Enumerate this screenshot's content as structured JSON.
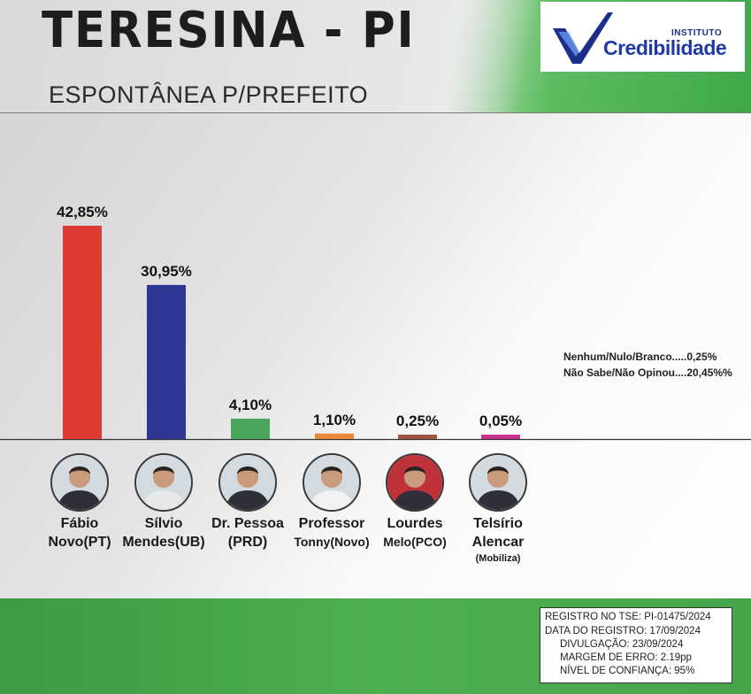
{
  "header": {
    "city": "TERESINA - PI",
    "subtitle": "ESPONTÂNEA P/PREFEITO"
  },
  "logo": {
    "small_text": "INSTITUTO",
    "brand_text": "Credibilidade",
    "brand_color": "#1f3aa6",
    "check_color": "#1b2f8a"
  },
  "chart_data": {
    "type": "bar",
    "categories": [
      "Fábio Novo(PT)",
      "Sílvio Mendes(UB)",
      "Dr. Pessoa (PRD)",
      "Professor Tonny(Novo)",
      "Lourdes Melo(PCO)",
      "Telsírio Alencar (Mobiliza)"
    ],
    "values": [
      42.85,
      30.95,
      4.1,
      1.1,
      0.25,
      0.05
    ],
    "value_labels": [
      "42,85%",
      "30,95%",
      "4,10%",
      "1,10%",
      "0,25%",
      "0,05%"
    ],
    "colors": [
      "#e03a35",
      "#2e3592",
      "#4aa65a",
      "#e8893a",
      "#9a5440",
      "#c8338f"
    ],
    "ylim": [
      0,
      45
    ]
  },
  "candidates": [
    {
      "line1": "Fábio",
      "line2": "Novo(PT)",
      "line3": "",
      "icon": "candidate-photo"
    },
    {
      "line1": "Sílvio",
      "line2": "Mendes(UB)",
      "line3": "",
      "icon": "candidate-photo"
    },
    {
      "line1": "Dr. Pessoa",
      "line2": "(PRD)",
      "line3": "",
      "icon": "candidate-photo"
    },
    {
      "line1": "Professor",
      "line2": "Tonny(Novo)",
      "line3": "",
      "icon": "candidate-photo"
    },
    {
      "line1": "Lourdes",
      "line2": "Melo(PCO)",
      "line3": "",
      "icon": "candidate-photo"
    },
    {
      "line1": "Telsírio",
      "line2": "Alencar",
      "line3": "(Mobiliza)",
      "icon": "candidate-photo"
    }
  ],
  "notes": {
    "line1": "Nenhum/Nulo/Branco.....0,25%",
    "line2": "Não Sabe/Não Opinou....20,45%%"
  },
  "registration": {
    "tse": "REGISTRO NO TSE: PI-01475/2024",
    "date": "DATA DO REGISTRO: 17/09/2024",
    "disclosure": "DIVULGAÇÃO: 23/09/2024",
    "margin": "MARGEM DE ERRO: 2.19pp",
    "confidence": "NÍVEL DE CONFIANÇA: 95%"
  }
}
